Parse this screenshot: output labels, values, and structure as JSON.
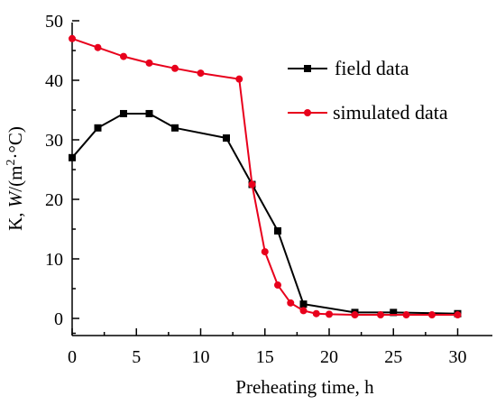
{
  "chart_data": {
    "type": "line",
    "xlabel": "Preheating time, h",
    "ylabel_parts": [
      "K, ",
      "W",
      "/(m",
      "2",
      "·°C)"
    ],
    "xlim": [
      0,
      32
    ],
    "ylim": [
      -3,
      50
    ],
    "x_ticks": [
      0,
      5,
      10,
      15,
      20,
      25,
      30
    ],
    "y_ticks": [
      0,
      10,
      20,
      30,
      40,
      50
    ],
    "grid": false,
    "legend_position": "top-right",
    "series": [
      {
        "name": "field data",
        "color": "#000000",
        "marker": "square",
        "x": [
          0,
          2,
          4,
          6,
          8,
          12,
          14,
          16,
          18,
          22,
          25,
          30
        ],
        "y": [
          27,
          32,
          34.4,
          34.4,
          32,
          30.3,
          22.5,
          14.7,
          2.4,
          1.0,
          1.0,
          0.8
        ]
      },
      {
        "name": "simulated data",
        "color": "#e8001c",
        "marker": "circle",
        "x": [
          0,
          2,
          4,
          6,
          8,
          10,
          13,
          14,
          15,
          16,
          17,
          18,
          19,
          20,
          22,
          24,
          26,
          28,
          30
        ],
        "y": [
          47,
          45.5,
          44,
          42.9,
          42,
          41.2,
          40.2,
          22.5,
          11.2,
          5.6,
          2.6,
          1.3,
          0.8,
          0.7,
          0.6,
          0.6,
          0.6,
          0.6,
          0.6
        ]
      }
    ]
  }
}
